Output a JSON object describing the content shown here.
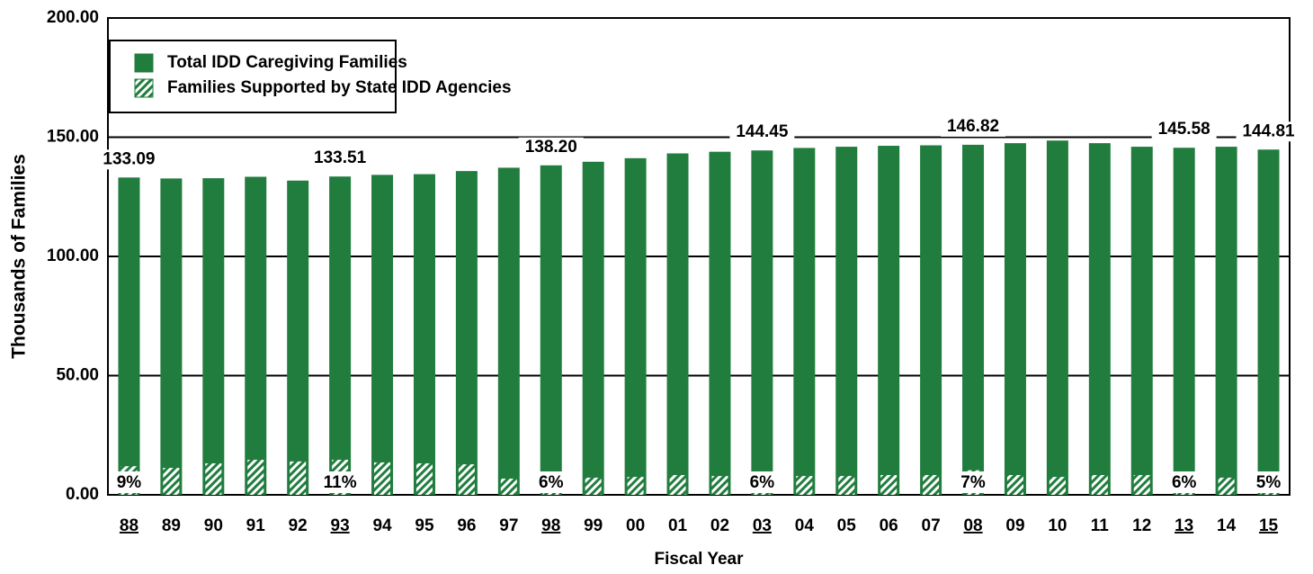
{
  "chart_data": {
    "type": "bar",
    "x_label": "Fiscal Year",
    "y_label": "Thousands of Families",
    "categories": [
      "88",
      "89",
      "90",
      "91",
      "92",
      "93",
      "94",
      "95",
      "96",
      "97",
      "98",
      "99",
      "00",
      "01",
      "02",
      "03",
      "04",
      "05",
      "06",
      "07",
      "08",
      "09",
      "10",
      "11",
      "12",
      "13",
      "14",
      "15"
    ],
    "series": [
      {
        "name": "Total IDD Caregiving Families",
        "color": "#217d3e",
        "values": [
          133.09,
          132.7,
          132.8,
          133.4,
          131.8,
          133.51,
          134.2,
          134.5,
          135.8,
          137.2,
          138.2,
          139.7,
          141.2,
          143.2,
          143.9,
          144.45,
          145.5,
          146.0,
          146.4,
          146.6,
          146.82,
          147.5,
          148.6,
          147.5,
          146.0,
          145.58,
          146.0,
          144.81
        ],
        "value_labels": [
          "133.09",
          null,
          null,
          null,
          null,
          "133.51",
          null,
          null,
          null,
          null,
          "138.20",
          null,
          null,
          null,
          null,
          "144.45",
          null,
          null,
          null,
          null,
          "146.82",
          null,
          null,
          null,
          null,
          "145.58",
          null,
          "144.81"
        ]
      },
      {
        "name": "Families Supported by State IDD Agencies",
        "color": "#217d3e",
        "hatched": true,
        "values": [
          12,
          11.3,
          13.2,
          14.7,
          14,
          14.7,
          13.6,
          13.2,
          12.8,
          6.8,
          8.3,
          7.2,
          7.5,
          8.3,
          7.9,
          8.7,
          7.9,
          7.9,
          8.3,
          8.3,
          10.3,
          8.3,
          7.5,
          8.3,
          8.3,
          8.7,
          7.2,
          7.2
        ]
      }
    ],
    "shares": {
      "values": [
        9,
        null,
        null,
        null,
        null,
        11,
        null,
        null,
        null,
        null,
        6,
        null,
        null,
        null,
        null,
        6,
        null,
        null,
        null,
        null,
        7,
        null,
        null,
        null,
        null,
        6,
        null,
        5
      ],
      "value_labels": [
        "9%",
        null,
        null,
        null,
        null,
        "11%",
        null,
        null,
        null,
        null,
        "6%",
        null,
        null,
        null,
        null,
        "6%",
        null,
        null,
        null,
        null,
        "7%",
        null,
        null,
        null,
        null,
        "6%",
        null,
        "5%"
      ]
    },
    "ylim": [
      0,
      200
    ],
    "yticks": [
      {
        "value": 0,
        "label": "0.00"
      },
      {
        "value": 50,
        "label": "50.00"
      },
      {
        "value": 100,
        "label": "100.00"
      },
      {
        "value": 150,
        "label": "150.00"
      },
      {
        "value": 200,
        "label": "200.00"
      }
    ],
    "grid": true,
    "legend": "upper left"
  }
}
